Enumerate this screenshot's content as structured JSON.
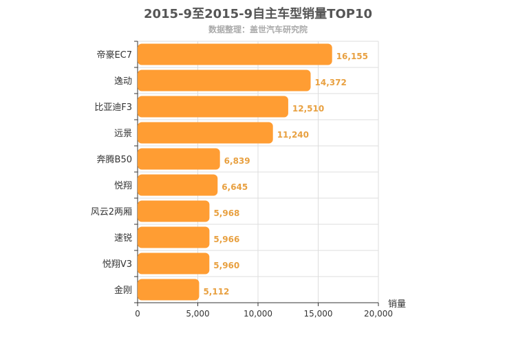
{
  "chart_data": {
    "type": "bar",
    "orientation": "horizontal",
    "title": "2015-9至2015-9自主车型销量TOP10",
    "subtitle": "数据整理：盖世汽车研究院",
    "xlabel": "销量",
    "ylabel": "",
    "categories": [
      "帝豪EC7",
      "逸动",
      "比亚迪F3",
      "远景",
      "奔腾B50",
      "悦翔",
      "风云2两厢",
      "速锐",
      "悦翔V3",
      "金刚"
    ],
    "values": [
      16155,
      14372,
      12510,
      11240,
      6839,
      6645,
      5968,
      5966,
      5960,
      5112
    ],
    "value_labels": [
      "16,155",
      "14,372",
      "12,510",
      "11,240",
      "6,839",
      "6,645",
      "5,968",
      "5,966",
      "5,960",
      "5,112"
    ],
    "xlim": [
      0,
      20000
    ],
    "xticks": [
      0,
      5000,
      10000,
      15000,
      20000
    ],
    "xtick_labels": [
      "0",
      "5,000",
      "10,000",
      "15,000",
      "20,000"
    ],
    "grid": true,
    "colors": {
      "bar": "#ff9d33",
      "value_label": "#e8a040",
      "grid": "#dddddd",
      "axis": "#333333"
    }
  }
}
